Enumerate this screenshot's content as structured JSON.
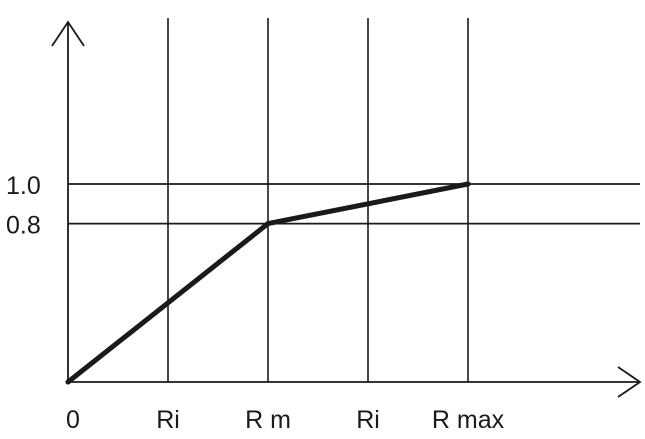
{
  "chart_data": {
    "type": "line",
    "title": "",
    "xlabel": "",
    "ylabel": "",
    "x_ticks": [
      {
        "label": "0",
        "value": 0
      },
      {
        "label": "Ri",
        "value": 1
      },
      {
        "label": "R m",
        "value": 2
      },
      {
        "label": "Ri",
        "value": 3
      },
      {
        "label": "R max",
        "value": 4
      }
    ],
    "y_ticks": [
      {
        "label": "0.8",
        "value": 0.8
      },
      {
        "label": "1.0",
        "value": 1.0
      }
    ],
    "xlim": [
      0,
      5.6
    ],
    "ylim": [
      0,
      1.8
    ],
    "grid": {
      "vertical_at_x": [
        1,
        2,
        3,
        4
      ],
      "horizontal_at_y": [
        0.8,
        1.0
      ]
    },
    "series": [
      {
        "points": [
          {
            "x": 0,
            "y": 0
          },
          {
            "x": 2,
            "y": 0.8
          },
          {
            "x": 4,
            "y": 1.0
          }
        ]
      }
    ],
    "colors": {
      "line": "#1a1a1a",
      "grid": "#1a1a1a",
      "axis": "#1a1a1a"
    }
  }
}
